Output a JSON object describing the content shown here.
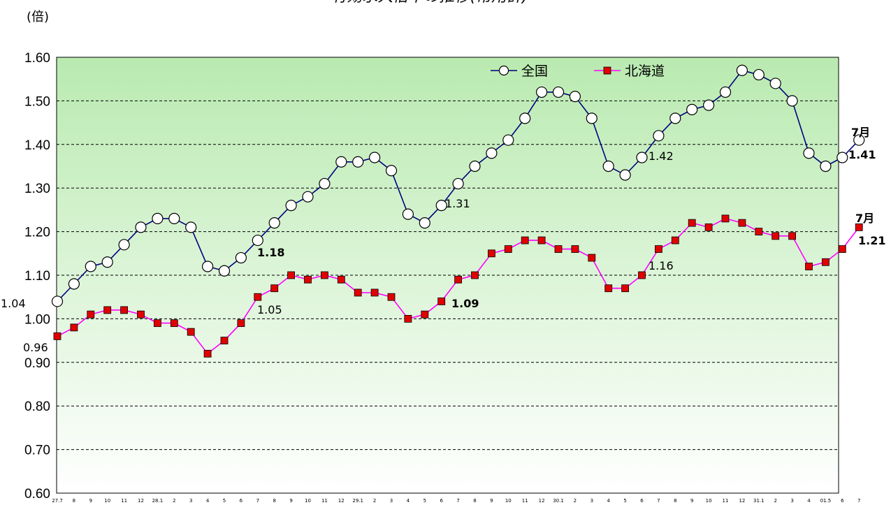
{
  "chart_data": {
    "type": "line",
    "title": "有効求人倍率の推移(常用計)",
    "unit_label": "(倍)",
    "ylim": [
      0.6,
      1.6
    ],
    "y_ticks": [
      "0.60",
      "0.70",
      "0.80",
      "0.90",
      "1.00",
      "1.10",
      "1.20",
      "1.30",
      "1.40",
      "1.50",
      "1.60"
    ],
    "grid": true,
    "legend_position": "top-right",
    "categories": [
      "27.7",
      "8",
      "9",
      "10",
      "11",
      "12",
      "28.1",
      "2",
      "3",
      "4",
      "5",
      "6",
      "7",
      "8",
      "9",
      "10",
      "11",
      "12",
      "29.1",
      "2",
      "3",
      "4",
      "5",
      "6",
      "7",
      "8",
      "9",
      "10",
      "11",
      "12",
      "30.1",
      "2",
      "3",
      "4",
      "5",
      "6",
      "7",
      "8",
      "9",
      "10",
      "11",
      "12",
      "31.1",
      "2",
      "3",
      "4",
      "01.5",
      "6",
      "7"
    ],
    "series": [
      {
        "name": "全国",
        "color": "#000080",
        "marker": "circle",
        "values": [
          1.04,
          1.08,
          1.12,
          1.13,
          1.17,
          1.21,
          1.23,
          1.23,
          1.21,
          1.12,
          1.11,
          1.14,
          1.18,
          1.22,
          1.26,
          1.28,
          1.31,
          1.36,
          1.36,
          1.37,
          1.34,
          1.24,
          1.22,
          1.26,
          1.31,
          1.35,
          1.38,
          1.41,
          1.46,
          1.52,
          1.52,
          1.51,
          1.46,
          1.35,
          1.33,
          1.37,
          1.42,
          1.46,
          1.48,
          1.49,
          1.52,
          1.57,
          1.56,
          1.54,
          1.5,
          1.38,
          1.35,
          1.37,
          1.41
        ]
      },
      {
        "name": "北海道",
        "color": "#FF00FF",
        "marker": "square",
        "values": [
          0.96,
          0.98,
          1.01,
          1.02,
          1.02,
          1.01,
          0.99,
          0.99,
          0.97,
          0.92,
          0.95,
          0.99,
          1.05,
          1.07,
          1.1,
          1.09,
          1.1,
          1.09,
          1.06,
          1.06,
          1.05,
          1.0,
          1.01,
          1.04,
          1.09,
          1.1,
          1.15,
          1.16,
          1.18,
          1.18,
          1.16,
          1.16,
          1.14,
          1.07,
          1.07,
          1.1,
          1.16,
          1.18,
          1.22,
          1.21,
          1.23,
          1.22,
          1.2,
          1.19,
          1.19,
          1.12,
          1.13,
          1.16,
          1.21
        ]
      }
    ],
    "annotations": [
      {
        "text": "1.04",
        "bold": false
      },
      {
        "text": "0.96",
        "bold": false
      },
      {
        "text": "1.18",
        "bold": true
      },
      {
        "text": "1.05",
        "bold": false
      },
      {
        "text": "1.31",
        "bold": false
      },
      {
        "text": "1.09",
        "bold": true
      },
      {
        "text": "1.42",
        "bold": false
      },
      {
        "text": "1.16",
        "bold": false
      },
      {
        "text": "7月",
        "bold": true
      },
      {
        "text": "1.41",
        "bold": true
      },
      {
        "text": "7月",
        "bold": true
      },
      {
        "text": "1.21",
        "bold": true
      }
    ]
  }
}
